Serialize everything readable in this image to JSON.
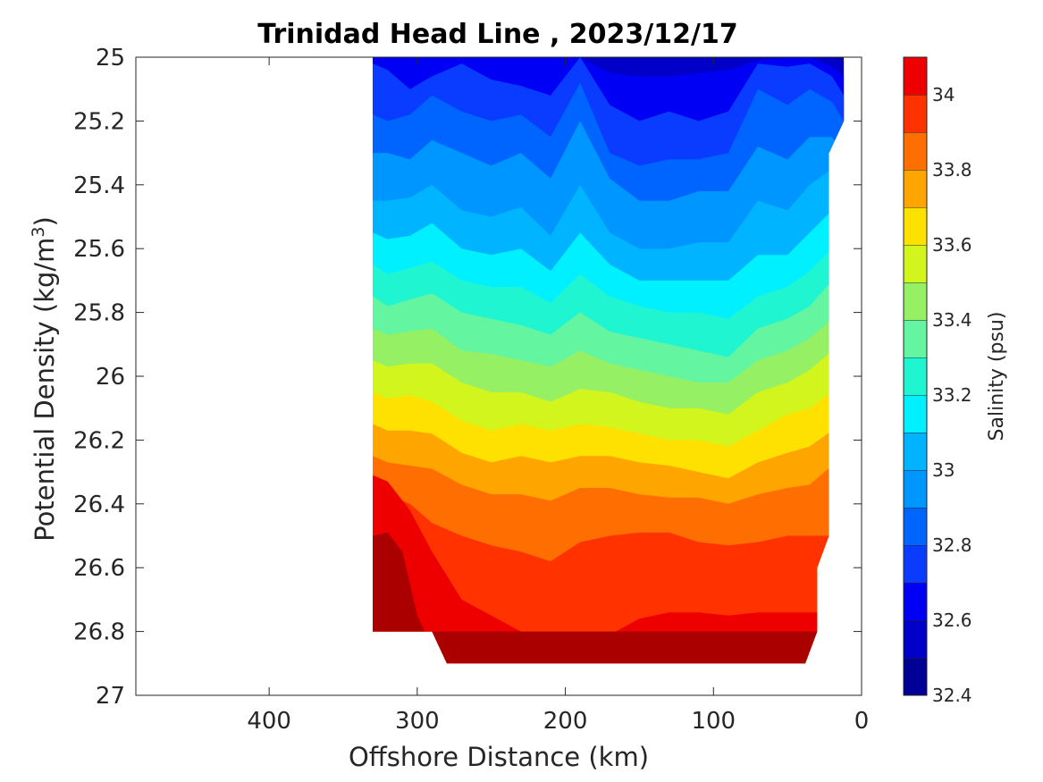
{
  "chart_data": {
    "type": "heatmap",
    "subtype": "filled-contour",
    "title": "Trinidad Head Line , 2023/12/17",
    "xlabel": "Offshore Distance (km)",
    "ylabel": "Potential Density (kg/m3)",
    "ylabel_main": "Potential Density (kg/m",
    "ylabel_sup": "3",
    "ylabel_close": ")",
    "colorbar_label": "Salinity (psu)",
    "x_reversed": true,
    "y_reversed": true,
    "xlim": [
      490,
      0
    ],
    "ylim": [
      25,
      27
    ],
    "xticks": [
      400,
      300,
      200,
      100,
      0
    ],
    "xtick_labels": [
      "400",
      "300",
      "200",
      "100",
      "0"
    ],
    "yticks": [
      25,
      25.2,
      25.4,
      25.6,
      25.8,
      26,
      26.2,
      26.4,
      26.6,
      26.8,
      27
    ],
    "ytick_labels": [
      "25",
      "25.2",
      "25.4",
      "25.6",
      "25.8",
      "26",
      "26.2",
      "26.4",
      "26.6",
      "26.8",
      "27"
    ],
    "clim": [
      32.4,
      34.1
    ],
    "colorbar_ticks": [
      34,
      33.8,
      33.6,
      33.4,
      33.2,
      33,
      32.8,
      32.6,
      32.4
    ],
    "colorbar_tick_labels": [
      "34",
      "33.8",
      "33.6",
      "33.4",
      "33.2",
      "33",
      "32.8",
      "32.6",
      "32.4"
    ],
    "levels": [
      32.4,
      32.5,
      32.6,
      32.7,
      32.8,
      32.9,
      33.0,
      33.1,
      33.2,
      33.3,
      33.4,
      33.5,
      33.6,
      33.7,
      33.8,
      33.9,
      34.0,
      34.1
    ],
    "colors": [
      "#000096",
      "#0000c8",
      "#0000f5",
      "#0a3cff",
      "#0064ff",
      "#0096ff",
      "#00b4ff",
      "#00f0ff",
      "#20f5d2",
      "#64f5a0",
      "#96f064",
      "#d2f51e",
      "#ffe100",
      "#ffa500",
      "#ff6e00",
      "#ff3200",
      "#ee0000",
      "#aa0000",
      "#7a0000"
    ],
    "colormap": "jet",
    "grid": false,
    "data_extent_x": [
      330,
      12
    ],
    "isolines": [
      {
        "value": 32.5,
        "x": [
          330,
          320,
          305,
          290,
          270,
          250,
          230,
          210,
          190,
          170,
          150,
          130,
          110,
          90,
          70,
          50,
          35,
          20,
          12
        ],
        "y": [
          24.95,
          24.96,
          24.97,
          24.96,
          24.97,
          24.96,
          24.97,
          24.96,
          24.97,
          24.98,
          24.98,
          24.98,
          24.98,
          24.98,
          24.97,
          24.97,
          24.99,
          25.0,
          25.01
        ]
      },
      {
        "value": 32.6,
        "x": [
          330,
          320,
          305,
          290,
          270,
          250,
          230,
          210,
          190,
          170,
          150,
          130,
          110,
          90,
          70,
          50,
          35,
          20,
          12
        ],
        "y": [
          24.98,
          24.99,
          25.0,
          24.99,
          25.0,
          24.99,
          25.0,
          24.99,
          25.0,
          25.05,
          25.06,
          25.06,
          25.05,
          25.04,
          25.01,
          25.0,
          25.0,
          25.03,
          25.06
        ]
      },
      {
        "value": 32.7,
        "x": [
          330,
          320,
          305,
          290,
          270,
          250,
          230,
          210,
          190,
          170,
          150,
          130,
          110,
          90,
          70,
          50,
          35,
          20,
          12
        ],
        "y": [
          25.02,
          25.04,
          25.1,
          25.06,
          25.02,
          25.07,
          25.09,
          25.12,
          25.0,
          25.15,
          25.2,
          25.17,
          25.2,
          25.17,
          25.02,
          25.03,
          25.02,
          25.06,
          25.12
        ]
      },
      {
        "value": 32.8,
        "x": [
          330,
          320,
          305,
          290,
          270,
          250,
          230,
          210,
          190,
          170,
          150,
          130,
          110,
          90,
          70,
          50,
          35,
          20,
          12
        ],
        "y": [
          25.18,
          25.2,
          25.18,
          25.12,
          25.17,
          25.2,
          25.18,
          25.25,
          25.08,
          25.3,
          25.34,
          25.32,
          25.32,
          25.3,
          25.1,
          25.15,
          25.1,
          25.14,
          25.2
        ]
      },
      {
        "value": 32.9,
        "x": [
          330,
          320,
          305,
          290,
          270,
          250,
          230,
          210,
          190,
          170,
          150,
          130,
          110,
          90,
          70,
          50,
          35,
          20,
          12
        ],
        "y": [
          25.3,
          25.3,
          25.32,
          25.26,
          25.3,
          25.34,
          25.3,
          25.38,
          25.2,
          25.38,
          25.45,
          25.45,
          25.42,
          25.42,
          25.28,
          25.32,
          25.25,
          25.25,
          25.3
        ]
      },
      {
        "value": 33.0,
        "x": [
          330,
          320,
          305,
          290,
          270,
          250,
          230,
          210,
          190,
          170,
          150,
          130,
          110,
          90,
          70,
          50,
          35,
          20
        ],
        "y": [
          25.45,
          25.45,
          25.44,
          25.4,
          25.48,
          25.5,
          25.47,
          25.56,
          25.4,
          25.55,
          25.6,
          25.6,
          25.58,
          25.58,
          25.45,
          25.48,
          25.4,
          25.35
        ]
      },
      {
        "value": 33.1,
        "x": [
          330,
          320,
          305,
          290,
          270,
          250,
          230,
          210,
          190,
          170,
          150,
          130,
          110,
          90,
          70,
          50,
          35,
          20
        ],
        "y": [
          25.55,
          25.57,
          25.56,
          25.52,
          25.6,
          25.62,
          25.6,
          25.67,
          25.55,
          25.65,
          25.7,
          25.7,
          25.7,
          25.7,
          25.62,
          25.62,
          25.55,
          25.48
        ]
      },
      {
        "value": 33.2,
        "x": [
          330,
          320,
          305,
          290,
          270,
          250,
          230,
          210,
          190,
          170,
          150,
          130,
          110,
          90,
          70,
          50,
          35,
          20
        ],
        "y": [
          25.65,
          25.68,
          25.66,
          25.64,
          25.7,
          25.72,
          25.72,
          25.77,
          25.68,
          25.75,
          25.78,
          25.8,
          25.8,
          25.82,
          25.75,
          25.72,
          25.67,
          25.6
        ]
      },
      {
        "value": 33.3,
        "x": [
          330,
          320,
          305,
          290,
          270,
          250,
          230,
          210,
          190,
          170,
          150,
          130,
          110,
          90,
          70,
          50,
          35,
          20
        ],
        "y": [
          25.75,
          25.78,
          25.76,
          25.74,
          25.8,
          25.82,
          25.84,
          25.87,
          25.8,
          25.86,
          25.88,
          25.9,
          25.92,
          25.94,
          25.85,
          25.82,
          25.78,
          25.7
        ]
      },
      {
        "value": 33.4,
        "x": [
          330,
          320,
          305,
          290,
          270,
          250,
          230,
          210,
          190,
          170,
          150,
          130,
          110,
          90,
          70,
          50,
          35,
          20
        ],
        "y": [
          25.85,
          25.87,
          25.86,
          25.85,
          25.92,
          25.93,
          25.95,
          25.97,
          25.92,
          25.96,
          25.98,
          26.0,
          26.02,
          26.02,
          25.95,
          25.92,
          25.88,
          25.82
        ]
      },
      {
        "value": 33.5,
        "x": [
          330,
          320,
          305,
          290,
          270,
          250,
          230,
          210,
          190,
          170,
          150,
          130,
          110,
          90,
          70,
          50,
          35,
          20
        ],
        "y": [
          25.95,
          25.97,
          25.96,
          25.96,
          26.02,
          26.05,
          26.05,
          26.08,
          26.04,
          26.05,
          26.08,
          26.1,
          26.1,
          26.12,
          26.05,
          26.02,
          25.98,
          25.92
        ]
      },
      {
        "value": 33.6,
        "x": [
          330,
          320,
          305,
          290,
          270,
          250,
          230,
          210,
          190,
          170,
          150,
          130,
          110,
          90,
          70,
          50,
          35,
          20
        ],
        "y": [
          26.05,
          26.07,
          26.06,
          26.08,
          26.14,
          26.17,
          26.15,
          26.17,
          26.15,
          26.16,
          26.18,
          26.2,
          26.2,
          26.22,
          26.17,
          26.12,
          26.1,
          26.05
        ]
      },
      {
        "value": 33.7,
        "x": [
          330,
          320,
          305,
          290,
          270,
          250,
          230,
          210,
          190,
          170,
          150,
          130,
          110,
          90,
          70,
          50,
          35,
          20
        ],
        "y": [
          26.15,
          26.17,
          26.17,
          26.18,
          26.24,
          26.27,
          26.25,
          26.27,
          26.25,
          26.25,
          26.27,
          26.28,
          26.3,
          26.32,
          26.27,
          26.24,
          26.22,
          26.17
        ]
      },
      {
        "value": 33.8,
        "x": [
          330,
          320,
          305,
          290,
          270,
          250,
          230,
          210,
          190,
          170,
          150,
          130,
          110,
          90,
          70,
          50,
          35,
          20
        ],
        "y": [
          26.25,
          26.27,
          26.28,
          26.29,
          26.34,
          26.37,
          26.37,
          26.39,
          26.35,
          26.35,
          26.37,
          26.38,
          26.38,
          26.4,
          26.37,
          26.35,
          26.34,
          26.28
        ]
      },
      {
        "value": 33.9,
        "x": [
          330,
          320,
          305,
          290,
          270,
          250,
          230,
          210,
          190,
          170,
          150,
          130,
          110,
          90,
          70,
          50,
          35,
          20
        ],
        "y": [
          26.35,
          26.37,
          26.4,
          26.46,
          26.5,
          26.53,
          26.55,
          26.58,
          26.52,
          26.5,
          26.49,
          26.49,
          26.52,
          26.53,
          26.52,
          26.5,
          26.5,
          26.5
        ]
      },
      {
        "value": 34.0,
        "x": [
          330,
          320,
          305,
          290,
          270,
          250,
          230,
          210,
          190,
          170,
          150,
          130,
          110,
          90,
          70,
          50,
          35
        ],
        "y": [
          26.31,
          26.33,
          26.42,
          26.55,
          26.7,
          26.75,
          26.8,
          26.84,
          26.82,
          26.81,
          26.76,
          26.74,
          26.74,
          26.75,
          26.74,
          26.74,
          26.74
        ]
      },
      {
        "value": 34.1,
        "x": [
          330,
          320,
          310,
          305,
          300,
          295
        ],
        "y": [
          26.5,
          26.49,
          26.55,
          26.65,
          26.75,
          26.8
        ]
      }
    ]
  }
}
